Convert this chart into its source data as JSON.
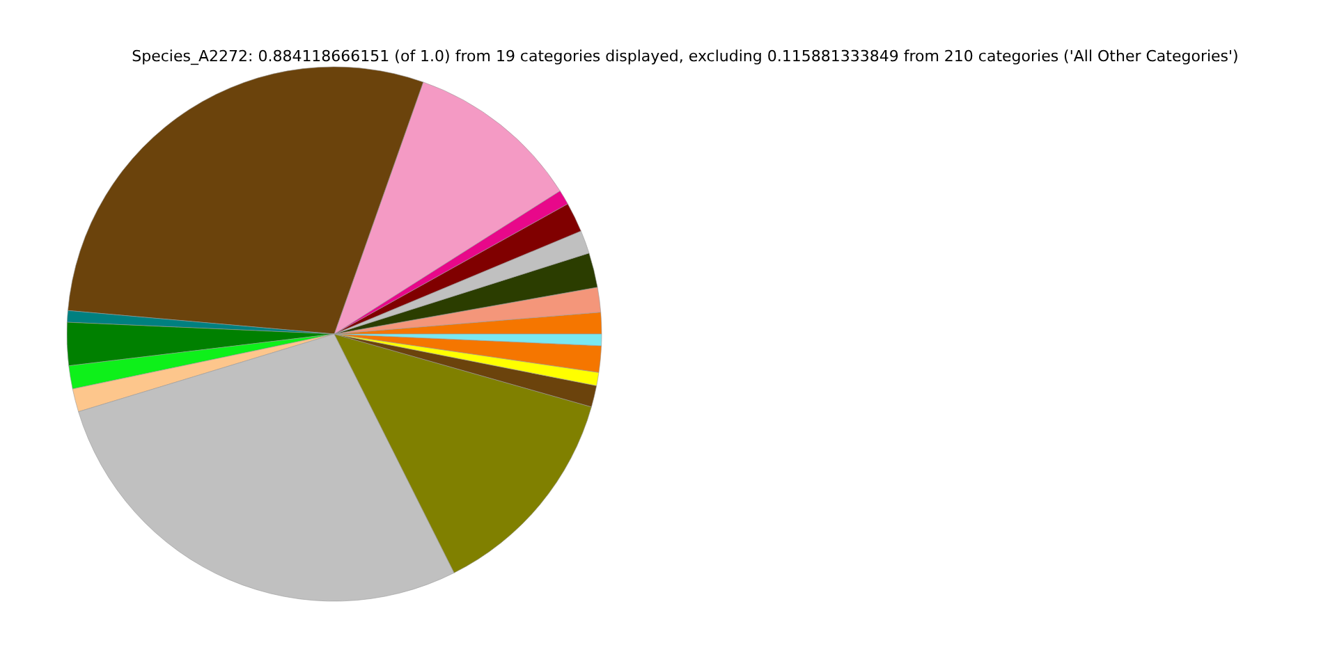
{
  "chart_data": {
    "type": "pie",
    "title": "Species_A2272: 0.884118666151 (of 1.0) from 19 categories displayed, excluding 0.115881333849 from 210 categories ('All Other Categories')",
    "categories": [
      null,
      null,
      null,
      null,
      null,
      null,
      null,
      null,
      null,
      null,
      null,
      null,
      null,
      null,
      null,
      null,
      null,
      null
    ],
    "values": [
      1.3,
      1.5,
      2.1,
      1.4,
      1.8,
      0.9,
      10.6,
      29.0,
      0.7,
      2.6,
      1.4,
      1.4,
      27.7,
      13.2,
      1.3,
      0.8,
      1.6,
      0.7
    ],
    "colors": [
      "#f57600",
      "#f4967a",
      "#2b3d00",
      "#c0c0c0",
      "#800000",
      "#e8088a",
      "#f49ac4",
      "#6b430c",
      "#008080",
      "#008000",
      "#0ef01a",
      "#fdc68c",
      "#c0c0c0",
      "#808000",
      "#6b430c",
      "#ffff00",
      "#f57600",
      "#7ae8f0"
    ]
  }
}
